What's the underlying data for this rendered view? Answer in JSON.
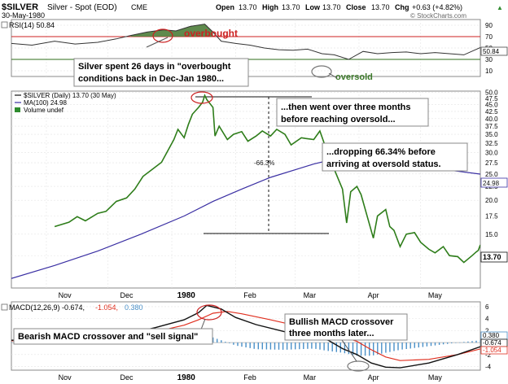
{
  "header": {
    "symbol": "$SILVER",
    "name": "Silver - Spot (EOD)",
    "exchange": "CME",
    "date": "30-May-1980",
    "open_label": "Open",
    "open": "13.70",
    "high_label": "High",
    "high": "13.70",
    "low_label": "Low",
    "low": "13.70",
    "close_label": "Close",
    "close": "13.70",
    "chg_label": "Chg",
    "chg": "+0.63 (+4.82%)",
    "chg_arrow": "▲",
    "watermark": "© StockCharts.com"
  },
  "colors": {
    "price": "#2e7d1a",
    "ma": "#3a2fa3",
    "rsi": "#333333",
    "rsi_over": "#3c7a2a",
    "red_line": "#cc2222",
    "macd": "#111111",
    "signal": "#e03020",
    "hist": "#4a90c8",
    "panel_bg": "#ffffff",
    "callout_border": "#888888"
  },
  "rsi_panel": {
    "legend": "RSI(14) 50.84",
    "current_label": "50.84",
    "ticks": [
      "90",
      "70",
      "50",
      "30",
      "10"
    ],
    "annotation_overbought": "overbought",
    "annotation_oversold": "oversold",
    "callout": [
      "Silver spent 26 days in \"overbought",
      "conditions back in Dec-Jan 1980..."
    ]
  },
  "price_panel": {
    "legend_main": "$SILVER (Daily) 13.70 (30 May)",
    "legend_ma": "MA(100) 24.98",
    "legend_vol": "Volume undef",
    "ma_label": "24.98",
    "close_label": "13.70",
    "ticks": [
      "50.0",
      "47.5",
      "45.0",
      "42.5",
      "40.0",
      "37.5",
      "35.0",
      "32.5",
      "30.0",
      "27.5",
      "25.0",
      "22.5",
      "20.0",
      "17.5",
      "15.0",
      "12.5"
    ],
    "drop_label": "-66.3%",
    "callout_months": [
      "...then went over three months",
      "before reaching oversold..."
    ],
    "callout_drop": [
      "...dropping 66.34% before",
      "arriving at oversold status."
    ]
  },
  "macd_panel": {
    "legend_main": "MACD(12,26,9) -0.674,",
    "legend_signal": "-1.054,",
    "legend_hist": "0.380",
    "label_hist": "0.380",
    "label_macd": "-0.674",
    "label_signal": "-1.054",
    "ticks": [
      "6",
      "4",
      "2",
      "0",
      "-2",
      "-4"
    ],
    "callout_bearish": "Bearish MACD crossover and \"sell signal\"",
    "callout_bullish": [
      "Bullish MACD crossover",
      "three months later..."
    ]
  },
  "x_axis": {
    "labels": [
      "Nov",
      "Dec",
      "1980",
      "Feb",
      "Mar",
      "Apr",
      "May"
    ]
  },
  "chart_data": [
    {
      "type": "line",
      "title": "RSI(14)",
      "x_from": "1979-10-15",
      "x_to": "1980-05-30",
      "ylim": [
        0,
        100
      ],
      "reference_lines": [
        70,
        30
      ],
      "series": [
        {
          "name": "RSI(14)",
          "points": [
            [
              "1979-10-15",
              58
            ],
            [
              "1979-10-25",
              55
            ],
            [
              "1979-11-05",
              62
            ],
            [
              "1979-11-15",
              57
            ],
            [
              "1979-11-26",
              60
            ],
            [
              "1979-12-05",
              66
            ],
            [
              "1979-12-12",
              72
            ],
            [
              "1979-12-20",
              78
            ],
            [
              "1979-12-28",
              82
            ],
            [
              "1980-01-03",
              80
            ],
            [
              "1980-01-10",
              88
            ],
            [
              "1980-01-17",
              92
            ],
            [
              "1980-01-21",
              78
            ],
            [
              "1980-01-25",
              62
            ],
            [
              "1980-02-01",
              58
            ],
            [
              "1980-02-08",
              55
            ],
            [
              "1980-02-15",
              50
            ],
            [
              "1980-02-22",
              47
            ],
            [
              "1980-02-29",
              46
            ],
            [
              "1980-03-07",
              48
            ],
            [
              "1980-03-14",
              40
            ],
            [
              "1980-03-20",
              38
            ],
            [
              "1980-03-27",
              30
            ],
            [
              "1980-04-03",
              44
            ],
            [
              "1980-04-10",
              40
            ],
            [
              "1980-04-17",
              42
            ],
            [
              "1980-04-24",
              43
            ],
            [
              "1980-05-01",
              40
            ],
            [
              "1980-05-08",
              42
            ],
            [
              "1980-05-15",
              40
            ],
            [
              "1980-05-22",
              38
            ],
            [
              "1980-05-30",
              50.84
            ]
          ]
        }
      ]
    },
    {
      "type": "line",
      "title": "$SILVER (Daily) 13.70 (30 May)",
      "x_from": "1979-10-15",
      "x_to": "1980-05-30",
      "ylim": [
        9.5,
        50.5
      ],
      "series": [
        {
          "name": "$SILVER",
          "points": [
            [
              "1979-11-05",
              16.0
            ],
            [
              "1979-11-12",
              16.6
            ],
            [
              "1979-11-16",
              17.4
            ],
            [
              "1979-11-20",
              16.8
            ],
            [
              "1979-11-26",
              17.9
            ],
            [
              "1979-11-30",
              18.2
            ],
            [
              "1979-12-05",
              19.8
            ],
            [
              "1979-12-10",
              20.4
            ],
            [
              "1979-12-14",
              22.0
            ],
            [
              "1979-12-18",
              24.5
            ],
            [
              "1979-12-21",
              25.5
            ],
            [
              "1979-12-27",
              27.6
            ],
            [
              "1980-01-02",
              33.5
            ],
            [
              "1980-01-04",
              36.5
            ],
            [
              "1980-01-07",
              34.0
            ],
            [
              "1980-01-09",
              38.0
            ],
            [
              "1980-01-11",
              41.5
            ],
            [
              "1980-01-14",
              44.0
            ],
            [
              "1980-01-16",
              46.0
            ],
            [
              "1980-01-17",
              48.7
            ],
            [
              "1980-01-18",
              47.0
            ],
            [
              "1980-01-21",
              44.0
            ],
            [
              "1980-01-22",
              34.5
            ],
            [
              "1980-01-24",
              37.5
            ],
            [
              "1980-01-28",
              33.5
            ],
            [
              "1980-01-31",
              35.0
            ],
            [
              "1980-02-04",
              35.8
            ],
            [
              "1980-02-07",
              33.0
            ],
            [
              "1980-02-11",
              34.5
            ],
            [
              "1980-02-14",
              36.0
            ],
            [
              "1980-02-18",
              34.5
            ],
            [
              "1980-02-21",
              36.5
            ],
            [
              "1980-02-25",
              35.0
            ],
            [
              "1980-02-28",
              32.0
            ],
            [
              "1980-03-04",
              34.0
            ],
            [
              "1980-03-06",
              33.8
            ],
            [
              "1980-03-10",
              33.5
            ],
            [
              "1980-03-13",
              36.0
            ],
            [
              "1980-03-17",
              29.5
            ],
            [
              "1980-03-20",
              26.0
            ],
            [
              "1980-03-24",
              22.0
            ],
            [
              "1980-03-26",
              16.5
            ],
            [
              "1980-03-28",
              21.5
            ],
            [
              "1980-03-31",
              22.5
            ],
            [
              "1980-04-02",
              21.0
            ],
            [
              "1980-04-08",
              14.5
            ],
            [
              "1980-04-10",
              17.5
            ],
            [
              "1980-04-14",
              18.5
            ],
            [
              "1980-04-16",
              16.0
            ],
            [
              "1980-04-18",
              15.5
            ],
            [
              "1980-04-21",
              13.5
            ],
            [
              "1980-04-24",
              15.0
            ],
            [
              "1980-04-28",
              15.2
            ],
            [
              "1980-05-01",
              14.0
            ],
            [
              "1980-05-05",
              13.2
            ],
            [
              "1980-05-08",
              12.8
            ],
            [
              "1980-05-12",
              13.5
            ],
            [
              "1980-05-15",
              12.5
            ],
            [
              "1980-05-19",
              12.4
            ],
            [
              "1980-05-22",
              11.8
            ],
            [
              "1980-05-26",
              12.5
            ],
            [
              "1980-05-28",
              12.9
            ],
            [
              "1980-05-29",
              13.07
            ],
            [
              "1980-05-30",
              13.7
            ]
          ]
        },
        {
          "name": "MA(100)",
          "points": [
            [
              "1979-10-15",
              10.3
            ],
            [
              "1979-11-05",
              11.5
            ],
            [
              "1979-11-26",
              13.0
            ],
            [
              "1979-12-17",
              15.0
            ],
            [
              "1980-01-07",
              17.5
            ],
            [
              "1980-01-21",
              19.8
            ],
            [
              "1980-02-04",
              22.0
            ],
            [
              "1980-02-18",
              24.3
            ],
            [
              "1980-03-03",
              26.2
            ],
            [
              "1980-03-10",
              27.2
            ],
            [
              "1980-03-17",
              28.0
            ],
            [
              "1980-03-24",
              28.3
            ],
            [
              "1980-03-31",
              28.2
            ],
            [
              "1980-04-14",
              27.9
            ],
            [
              "1980-04-28",
              27.0
            ],
            [
              "1980-05-12",
              26.0
            ],
            [
              "1980-05-30",
              24.98
            ]
          ]
        }
      ]
    },
    {
      "type": "line",
      "title": "MACD(12,26,9)",
      "x_from": "1979-10-15",
      "x_to": "1980-05-30",
      "ylim": [
        -4.6,
        6.8
      ],
      "series": [
        {
          "name": "MACD",
          "points": [
            [
              "1979-10-15",
              0.4
            ],
            [
              "1979-11-05",
              0.6
            ],
            [
              "1979-11-26",
              0.9
            ],
            [
              "1979-12-10",
              1.4
            ],
            [
              "1979-12-24",
              2.5
            ],
            [
              "1980-01-07",
              3.8
            ],
            [
              "1980-01-14",
              5.0
            ],
            [
              "1980-01-18",
              6.2
            ],
            [
              "1980-01-25",
              5.6
            ],
            [
              "1980-02-01",
              4.2
            ],
            [
              "1980-02-11",
              3.0
            ],
            [
              "1980-02-25",
              1.8
            ],
            [
              "1980-03-10",
              1.0
            ],
            [
              "1980-03-17",
              0.4
            ],
            [
              "1980-03-24",
              -1.0
            ],
            [
              "1980-03-31",
              -2.0
            ],
            [
              "1980-04-07",
              -3.4
            ],
            [
              "1980-04-14",
              -4.1
            ],
            [
              "1980-04-21",
              -4.2
            ],
            [
              "1980-05-05",
              -3.4
            ],
            [
              "1980-05-19",
              -2.0
            ],
            [
              "1980-05-30",
              -0.674
            ]
          ]
        },
        {
          "name": "Signal",
          "points": [
            [
              "1979-10-15",
              0.3
            ],
            [
              "1979-11-05",
              0.5
            ],
            [
              "1979-11-26",
              0.7
            ],
            [
              "1979-12-10",
              1.1
            ],
            [
              "1979-12-24",
              1.8
            ],
            [
              "1980-01-07",
              2.9
            ],
            [
              "1980-01-14",
              3.8
            ],
            [
              "1980-01-21",
              4.9
            ],
            [
              "1980-01-28",
              5.2
            ],
            [
              "1980-02-04",
              4.8
            ],
            [
              "1980-02-18",
              3.8
            ],
            [
              "1980-03-03",
              2.7
            ],
            [
              "1980-03-17",
              1.8
            ],
            [
              "1980-03-31",
              0.2
            ],
            [
              "1980-04-07",
              -1.2
            ],
            [
              "1980-04-14",
              -2.4
            ],
            [
              "1980-04-21",
              -3.0
            ],
            [
              "1980-05-05",
              -2.8
            ],
            [
              "1980-05-19",
              -2.0
            ],
            [
              "1980-05-30",
              -1.054
            ]
          ]
        },
        {
          "name": "Histogram",
          "points": [
            [
              "1979-10-15",
              0.1
            ],
            [
              "1979-11-05",
              0.1
            ],
            [
              "1979-11-26",
              0.2
            ],
            [
              "1979-12-10",
              0.3
            ],
            [
              "1979-12-24",
              0.7
            ],
            [
              "1980-01-07",
              0.9
            ],
            [
              "1980-01-14",
              1.2
            ],
            [
              "1980-01-18",
              1.2
            ],
            [
              "1980-01-25",
              0.4
            ],
            [
              "1980-02-01",
              -0.5
            ],
            [
              "1980-02-11",
              -1.1
            ],
            [
              "1980-02-25",
              -1.2
            ],
            [
              "1980-03-10",
              -1.0
            ],
            [
              "1980-03-17",
              -1.4
            ],
            [
              "1980-03-24",
              -1.7
            ],
            [
              "1980-03-31",
              -2.2
            ],
            [
              "1980-04-07",
              -2.2
            ],
            [
              "1980-04-14",
              -1.7
            ],
            [
              "1980-04-21",
              -1.2
            ],
            [
              "1980-05-05",
              -0.6
            ],
            [
              "1980-05-19",
              0.0
            ],
            [
              "1980-05-30",
              0.38
            ]
          ]
        }
      ]
    }
  ]
}
